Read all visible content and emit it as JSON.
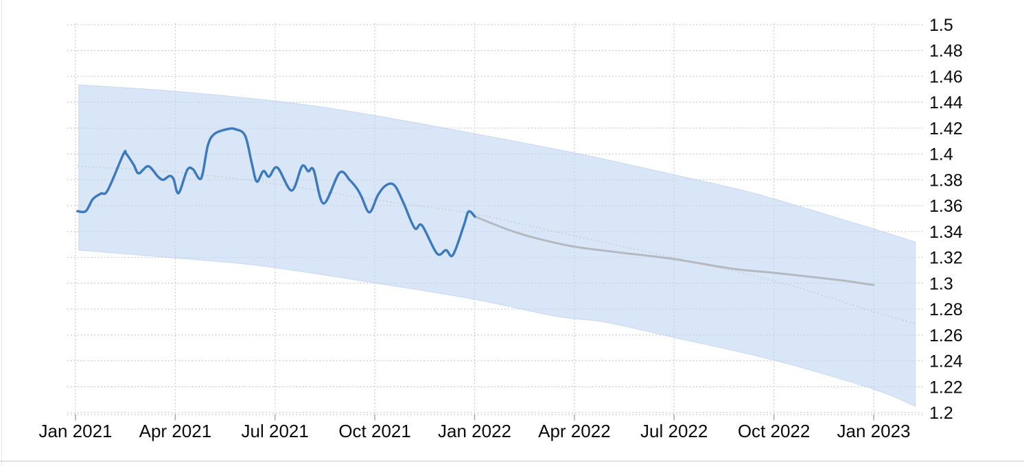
{
  "chart_data": {
    "type": "line",
    "title": "",
    "description": "Currency exchange-rate history with forecast and confidence band, Jan 2021 - Jan 2023",
    "x_axis": {
      "unit": "month-index (0 = Jan 2021)",
      "ticks": [
        {
          "month": 0,
          "label": "Jan 2021"
        },
        {
          "month": 3,
          "label": "Apr 2021"
        },
        {
          "month": 6,
          "label": "Jul 2021"
        },
        {
          "month": 9,
          "label": "Oct 2021"
        },
        {
          "month": 12,
          "label": "Jan 2022"
        },
        {
          "month": 15,
          "label": "Apr 2022"
        },
        {
          "month": 18,
          "label": "Jul 2022"
        },
        {
          "month": 21,
          "label": "Oct 2022"
        },
        {
          "month": 24,
          "label": "Jan 2023"
        }
      ]
    },
    "y_axis": {
      "min": 1.2,
      "max": 1.5,
      "step": 0.02,
      "ticks": [
        {
          "value": 1.5,
          "label": "1.5"
        },
        {
          "value": 1.48,
          "label": "1.48"
        },
        {
          "value": 1.46,
          "label": "1.46"
        },
        {
          "value": 1.44,
          "label": "1.44"
        },
        {
          "value": 1.42,
          "label": "1.42"
        },
        {
          "value": 1.4,
          "label": "1.4"
        },
        {
          "value": 1.38,
          "label": "1.38"
        },
        {
          "value": 1.36,
          "label": "1.36"
        },
        {
          "value": 1.34,
          "label": "1.34"
        },
        {
          "value": 1.32,
          "label": "1.32"
        },
        {
          "value": 1.3,
          "label": "1.3"
        },
        {
          "value": 1.28,
          "label": "1.28"
        },
        {
          "value": 1.26,
          "label": "1.26"
        },
        {
          "value": 1.24,
          "label": "1.24"
        },
        {
          "value": 1.22,
          "label": "1.22"
        },
        {
          "value": 1.2,
          "label": "1.2"
        }
      ]
    },
    "colors": {
      "history_line": "#3c7abd",
      "forecast_line": "#b3b9bf",
      "trend_line": "#c6ccd2",
      "band_fill": "#c2d7f3",
      "band_fill_opacity": 0.62,
      "band_edge": "#a9c4ea",
      "gridline": "#c9c9c9",
      "tick": "#a8a8a8",
      "label": "#0a0a0a"
    },
    "series": [
      {
        "name": "confidence-band",
        "kind": "band",
        "upper": [
          [
            0.1,
            1.4535
          ],
          [
            3.0,
            1.4485
          ],
          [
            6.0,
            1.441
          ],
          [
            8.0,
            1.434
          ],
          [
            10.1,
            1.4248
          ],
          [
            12.0,
            1.4157
          ],
          [
            15.0,
            1.4009
          ],
          [
            18.0,
            1.3839
          ],
          [
            20.4,
            1.3696
          ],
          [
            23.5,
            1.346
          ],
          [
            25.25,
            1.332
          ]
        ],
        "lower": [
          [
            0.1,
            1.3256
          ],
          [
            3.0,
            1.3195
          ],
          [
            5.6,
            1.3134
          ],
          [
            9.0,
            1.3002
          ],
          [
            12.0,
            1.2875
          ],
          [
            14.5,
            1.2742
          ],
          [
            15.9,
            1.27
          ],
          [
            18.0,
            1.258
          ],
          [
            21.0,
            1.2405
          ],
          [
            24.0,
            1.218
          ],
          [
            25.25,
            1.2048
          ]
        ]
      },
      {
        "name": "trend-line",
        "kind": "dotted-line",
        "points": [
          [
            0.06,
            1.3905
          ],
          [
            3.0,
            1.386
          ],
          [
            6.0,
            1.377
          ],
          [
            9.0,
            1.3645
          ],
          [
            12.0,
            1.3535
          ],
          [
            15.0,
            1.3366
          ],
          [
            18.57,
            1.3165
          ],
          [
            21.25,
            1.3002
          ],
          [
            24.0,
            1.278
          ],
          [
            25.3,
            1.2684
          ]
        ]
      },
      {
        "name": "forecast-line",
        "kind": "line",
        "points": [
          [
            12.01,
            1.3516
          ],
          [
            13.0,
            1.3415
          ],
          [
            13.8,
            1.3352
          ],
          [
            15.0,
            1.3283
          ],
          [
            16.3,
            1.324
          ],
          [
            18.0,
            1.3187
          ],
          [
            19.74,
            1.3113
          ],
          [
            21.0,
            1.3081
          ],
          [
            22.3,
            1.3044
          ],
          [
            23.2,
            1.3017
          ],
          [
            24.0,
            1.2986
          ]
        ]
      },
      {
        "name": "history-line",
        "kind": "line",
        "points": [
          [
            0.06,
            1.3558
          ],
          [
            0.31,
            1.3558
          ],
          [
            0.52,
            1.365
          ],
          [
            0.76,
            1.3693
          ],
          [
            0.97,
            1.372
          ],
          [
            1.44,
            1.3998
          ],
          [
            1.53,
            1.4
          ],
          [
            1.75,
            1.3916
          ],
          [
            1.9,
            1.385
          ],
          [
            2.19,
            1.3905
          ],
          [
            2.48,
            1.3825
          ],
          [
            2.64,
            1.38
          ],
          [
            2.83,
            1.383
          ],
          [
            2.95,
            1.3805
          ],
          [
            3.1,
            1.3697
          ],
          [
            3.36,
            1.3876
          ],
          [
            3.53,
            1.3882
          ],
          [
            3.78,
            1.3813
          ],
          [
            3.98,
            1.4067
          ],
          [
            4.19,
            1.4157
          ],
          [
            4.6,
            1.4194
          ],
          [
            4.81,
            1.4191
          ],
          [
            5.1,
            1.4142
          ],
          [
            5.3,
            1.3929
          ],
          [
            5.45,
            1.3786
          ],
          [
            5.65,
            1.3868
          ],
          [
            5.82,
            1.3825
          ],
          [
            6.07,
            1.3895
          ],
          [
            6.5,
            1.3717
          ],
          [
            6.81,
            1.3905
          ],
          [
            7.0,
            1.3866
          ],
          [
            7.16,
            1.3876
          ],
          [
            7.46,
            1.3617
          ],
          [
            7.94,
            1.3855
          ],
          [
            8.25,
            1.3797
          ],
          [
            8.46,
            1.3733
          ],
          [
            8.6,
            1.367
          ],
          [
            8.84,
            1.3548
          ],
          [
            9.1,
            1.3685
          ],
          [
            9.35,
            1.376
          ],
          [
            9.6,
            1.3755
          ],
          [
            9.87,
            1.3617
          ],
          [
            10.2,
            1.3426
          ],
          [
            10.42,
            1.3447
          ],
          [
            10.87,
            1.323
          ],
          [
            11.14,
            1.3256
          ],
          [
            11.35,
            1.3219
          ],
          [
            11.68,
            1.345
          ],
          [
            11.82,
            1.3555
          ],
          [
            12.01,
            1.3516
          ]
        ]
      }
    ],
    "legend": null,
    "grid": true
  }
}
